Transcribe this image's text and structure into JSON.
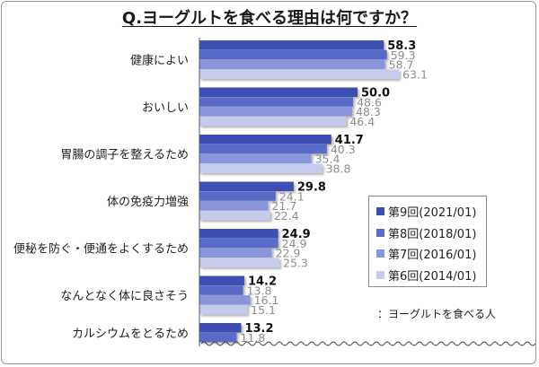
{
  "chart_data": {
    "type": "bar",
    "orientation": "horizontal",
    "title": "Q.ヨーグルトを食べる理由は何ですか？",
    "categories": [
      "健康によい",
      "おいしい",
      "胃腸の調子を整えるため",
      "体の免疫力増強",
      "便秘を防ぐ・便通をよくするため",
      "なんとなく体に良さそう",
      "カルシウムをとるため"
    ],
    "series": [
      {
        "name": "第9回(2021/01)",
        "color": "#3d4fb3",
        "values": [
          58.3,
          50.0,
          41.7,
          29.8,
          24.9,
          14.2,
          13.2
        ]
      },
      {
        "name": "第8回(2018/01)",
        "color": "#5a6ac9",
        "values": [
          59.3,
          48.6,
          40.3,
          24.1,
          24.9,
          13.8,
          11.8
        ]
      },
      {
        "name": "第7回(2016/01)",
        "color": "#8a96dc",
        "values": [
          58.7,
          48.3,
          35.4,
          21.7,
          22.9,
          16.1,
          null
        ]
      },
      {
        "name": "第6回(2014/01)",
        "color": "#c6cbee",
        "values": [
          63.1,
          46.4,
          38.8,
          22.4,
          25.3,
          15.1,
          null
        ]
      }
    ],
    "xlim": [
      0,
      100
    ],
    "grid": false,
    "legend_position": "right"
  },
  "footnote": "：ヨーグルトを食べる人"
}
